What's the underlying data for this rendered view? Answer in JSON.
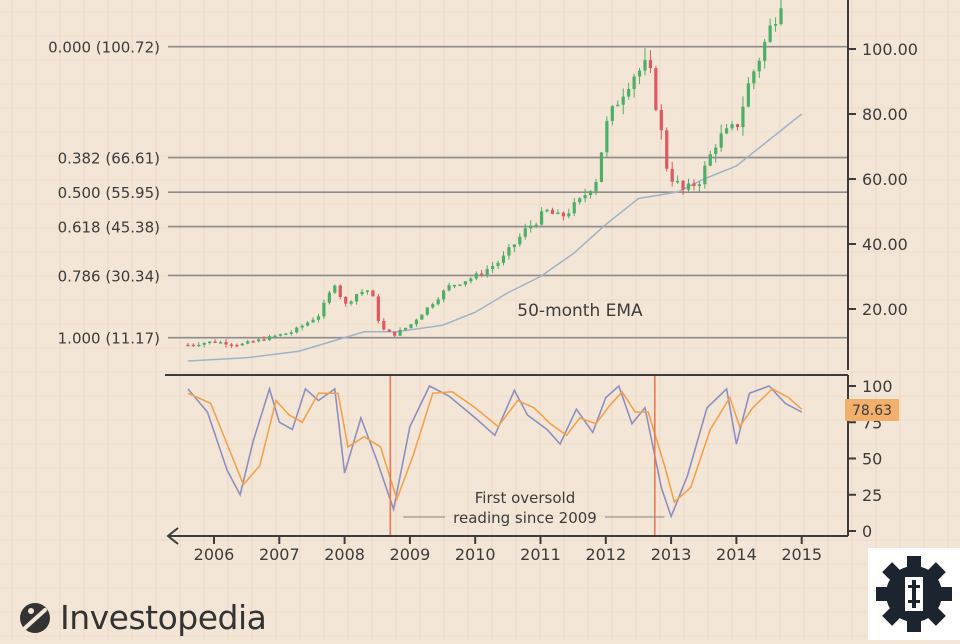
{
  "chart_data": [
    {
      "type": "candlestick",
      "panel": "price",
      "title": "",
      "x_ticks": [
        "2006",
        "2007",
        "2008",
        "2009",
        "2010",
        "2011",
        "2012",
        "2013",
        "2014",
        "2015"
      ],
      "y_ticks": [
        "20.00",
        "40.00",
        "60.00",
        "80.00",
        "100.00"
      ],
      "ylim": [
        0,
        115
      ],
      "fib_levels": [
        {
          "label": "0.000 (100.72)",
          "value": 100.72
        },
        {
          "label": "0.382 (66.61)",
          "value": 66.61
        },
        {
          "label": "0.500 (55.95)",
          "value": 55.95
        },
        {
          "label": "0.618 (45.38)",
          "value": 45.38
        },
        {
          "label": "0.786 (30.34)",
          "value": 30.34
        },
        {
          "label": "1.000 (11.17)",
          "value": 11.17
        }
      ],
      "annotation": "50-month EMA",
      "close_series": [
        {
          "date": "2005.6",
          "value": 9
        },
        {
          "date": "2006.0",
          "value": 10
        },
        {
          "date": "2006.4",
          "value": 9
        },
        {
          "date": "2006.8",
          "value": 11
        },
        {
          "date": "2007.2",
          "value": 13
        },
        {
          "date": "2007.6",
          "value": 18
        },
        {
          "date": "2007.85",
          "value": 28
        },
        {
          "date": "2008.0",
          "value": 21
        },
        {
          "date": "2008.2",
          "value": 25
        },
        {
          "date": "2008.4",
          "value": 26
        },
        {
          "date": "2008.55",
          "value": 14
        },
        {
          "date": "2008.75",
          "value": 12
        },
        {
          "date": "2009.0",
          "value": 15
        },
        {
          "date": "2009.3",
          "value": 21
        },
        {
          "date": "2009.6",
          "value": 27
        },
        {
          "date": "2010.0",
          "value": 30
        },
        {
          "date": "2010.4",
          "value": 35
        },
        {
          "date": "2010.8",
          "value": 45
        },
        {
          "date": "2011.1",
          "value": 50
        },
        {
          "date": "2011.3",
          "value": 48
        },
        {
          "date": "2011.6",
          "value": 53
        },
        {
          "date": "2011.85",
          "value": 60
        },
        {
          "date": "2012.0",
          "value": 76
        },
        {
          "date": "2012.2",
          "value": 85
        },
        {
          "date": "2012.4",
          "value": 92
        },
        {
          "date": "2012.65",
          "value": 95
        },
        {
          "date": "2012.8",
          "value": 80
        },
        {
          "date": "2012.95",
          "value": 62
        },
        {
          "date": "2013.2",
          "value": 56
        },
        {
          "date": "2013.45",
          "value": 60
        },
        {
          "date": "2013.7",
          "value": 72
        },
        {
          "date": "2014.0",
          "value": 76
        },
        {
          "date": "2014.2",
          "value": 90
        },
        {
          "date": "2014.4",
          "value": 100
        },
        {
          "date": "2014.55",
          "value": 108
        },
        {
          "date": "2014.75",
          "value": 120
        }
      ],
      "ema_series": [
        {
          "date": "2005.6",
          "value": 4
        },
        {
          "date": "2006.5",
          "value": 5
        },
        {
          "date": "2007.3",
          "value": 7
        },
        {
          "date": "2007.8",
          "value": 10
        },
        {
          "date": "2008.3",
          "value": 13
        },
        {
          "date": "2008.8",
          "value": 13
        },
        {
          "date": "2009.5",
          "value": 15
        },
        {
          "date": "2010.0",
          "value": 19
        },
        {
          "date": "2010.5",
          "value": 25
        },
        {
          "date": "2011.0",
          "value": 30
        },
        {
          "date": "2011.5",
          "value": 37
        },
        {
          "date": "2012.0",
          "value": 46
        },
        {
          "date": "2012.5",
          "value": 54
        },
        {
          "date": "2012.8",
          "value": 55
        },
        {
          "date": "2013.1",
          "value": 56
        },
        {
          "date": "2013.5",
          "value": 60
        },
        {
          "date": "2014.0",
          "value": 64
        },
        {
          "date": "2014.5",
          "value": 72
        },
        {
          "date": "2015.0",
          "value": 80
        }
      ]
    },
    {
      "type": "line",
      "panel": "stochastic",
      "title": "",
      "x_ticks": [
        "2006",
        "2007",
        "2008",
        "2009",
        "2010",
        "2011",
        "2012",
        "2013",
        "2014",
        "2015"
      ],
      "y_ticks": [
        "0",
        "25",
        "50",
        "75",
        "100"
      ],
      "ylim": [
        0,
        100
      ],
      "current_value_label": "78.63",
      "annotation": "First oversold\nreading since 2009",
      "series": [
        {
          "data": [
            {
              "date": "2005.6",
              "value": 98
            },
            {
              "date": "2005.9",
              "value": 82
            },
            {
              "date": "2006.2",
              "value": 42
            },
            {
              "date": "2006.4",
              "value": 25
            },
            {
              "date": "2006.6",
              "value": 62
            },
            {
              "date": "2006.85",
              "value": 98
            },
            {
              "date": "2007.0",
              "value": 75
            },
            {
              "date": "2007.2",
              "value": 70
            },
            {
              "date": "2007.4",
              "value": 98
            },
            {
              "date": "2007.6",
              "value": 90
            },
            {
              "date": "2007.85",
              "value": 98
            },
            {
              "date": "2008.0",
              "value": 40
            },
            {
              "date": "2008.25",
              "value": 78
            },
            {
              "date": "2008.5",
              "value": 48
            },
            {
              "date": "2008.75",
              "value": 15
            },
            {
              "date": "2009.0",
              "value": 72
            },
            {
              "date": "2009.3",
              "value": 100
            },
            {
              "date": "2009.6",
              "value": 93
            },
            {
              "date": "2010.0",
              "value": 78
            },
            {
              "date": "2010.3",
              "value": 66
            },
            {
              "date": "2010.6",
              "value": 97
            },
            {
              "date": "2010.8",
              "value": 80
            },
            {
              "date": "2011.1",
              "value": 70
            },
            {
              "date": "2011.3",
              "value": 60
            },
            {
              "date": "2011.55",
              "value": 84
            },
            {
              "date": "2011.8",
              "value": 68
            },
            {
              "date": "2012.0",
              "value": 92
            },
            {
              "date": "2012.2",
              "value": 100
            },
            {
              "date": "2012.4",
              "value": 74
            },
            {
              "date": "2012.6",
              "value": 85
            },
            {
              "date": "2012.85",
              "value": 30
            },
            {
              "date": "2013.0",
              "value": 10
            },
            {
              "date": "2013.25",
              "value": 38
            },
            {
              "date": "2013.55",
              "value": 85
            },
            {
              "date": "2013.85",
              "value": 98
            },
            {
              "date": "2014.0",
              "value": 60
            },
            {
              "date": "2014.2",
              "value": 95
            },
            {
              "date": "2014.5",
              "value": 100
            },
            {
              "date": "2014.75",
              "value": 88
            },
            {
              "date": "2015.0",
              "value": 82
            }
          ]
        },
        {
          "data": [
            {
              "date": "2005.6",
              "value": 95
            },
            {
              "date": "2005.95",
              "value": 88
            },
            {
              "date": "2006.2",
              "value": 60
            },
            {
              "date": "2006.45",
              "value": 32
            },
            {
              "date": "2006.7",
              "value": 45
            },
            {
              "date": "2006.95",
              "value": 90
            },
            {
              "date": "2007.15",
              "value": 80
            },
            {
              "date": "2007.35",
              "value": 75
            },
            {
              "date": "2007.6",
              "value": 95
            },
            {
              "date": "2007.9",
              "value": 95
            },
            {
              "date": "2008.05",
              "value": 58
            },
            {
              "date": "2008.3",
              "value": 65
            },
            {
              "date": "2008.55",
              "value": 58
            },
            {
              "date": "2008.8",
              "value": 22
            },
            {
              "date": "2009.05",
              "value": 52
            },
            {
              "date": "2009.35",
              "value": 95
            },
            {
              "date": "2009.65",
              "value": 96
            },
            {
              "date": "2010.0",
              "value": 85
            },
            {
              "date": "2010.35",
              "value": 72
            },
            {
              "date": "2010.65",
              "value": 90
            },
            {
              "date": "2010.9",
              "value": 85
            },
            {
              "date": "2011.15",
              "value": 74
            },
            {
              "date": "2011.4",
              "value": 66
            },
            {
              "date": "2011.6",
              "value": 78
            },
            {
              "date": "2011.85",
              "value": 74
            },
            {
              "date": "2012.05",
              "value": 86
            },
            {
              "date": "2012.25",
              "value": 96
            },
            {
              "date": "2012.45",
              "value": 82
            },
            {
              "date": "2012.65",
              "value": 82
            },
            {
              "date": "2012.9",
              "value": 45
            },
            {
              "date": "2013.05",
              "value": 20
            },
            {
              "date": "2013.3",
              "value": 30
            },
            {
              "date": "2013.6",
              "value": 70
            },
            {
              "date": "2013.9",
              "value": 92
            },
            {
              "date": "2014.05",
              "value": 72
            },
            {
              "date": "2014.25",
              "value": 85
            },
            {
              "date": "2014.55",
              "value": 98
            },
            {
              "date": "2014.8",
              "value": 92
            },
            {
              "date": "2015.0",
              "value": 84
            }
          ]
        }
      ]
    }
  ],
  "colors": {
    "background": "#f4e6d6",
    "grid": "#e6cfba",
    "level_line": "#8c8c8c",
    "candle_up": "#4caf68",
    "candle_down": "#e0575f",
    "ema": "#9fb3c8",
    "stoch_blue": "#8d8fc0",
    "stoch_orange": "#f2a24e",
    "oversold_marker": "#e77a55",
    "value_label_bg": "#f3b06c",
    "axis": "#3c3c3c"
  },
  "icons": {
    "brand_logo": "investopedia-logo-icon",
    "corner": "gear-dollar-icon"
  },
  "branding": {
    "name": "Investopedia"
  }
}
